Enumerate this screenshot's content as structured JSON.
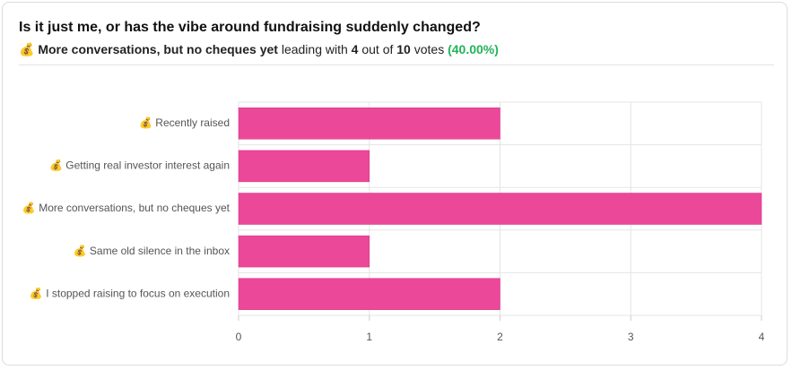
{
  "chart_data": {
    "type": "bar",
    "orientation": "horizontal",
    "title": "Is it just me, or has the vibe around fundraising suddenly changed?",
    "subtitle": {
      "leader": "💰 More conversations, but no cheques yet",
      "text_a": "leading with",
      "votes": 4,
      "text_b": "out of",
      "total": 10,
      "text_c": "votes",
      "percent": "(40.00%)"
    },
    "categories": [
      "💰 Recently raised",
      "💰 Getting real investor interest again",
      "💰 More conversations, but no cheques yet",
      "💰 Same old silence in the inbox",
      "💰 I stopped raising to focus on execution"
    ],
    "values": [
      2,
      1,
      4,
      1,
      2
    ],
    "color": "#ec4899",
    "xlim": [
      0,
      4
    ],
    "xticks": [
      0,
      1,
      2,
      3,
      4
    ],
    "grid": true
  }
}
